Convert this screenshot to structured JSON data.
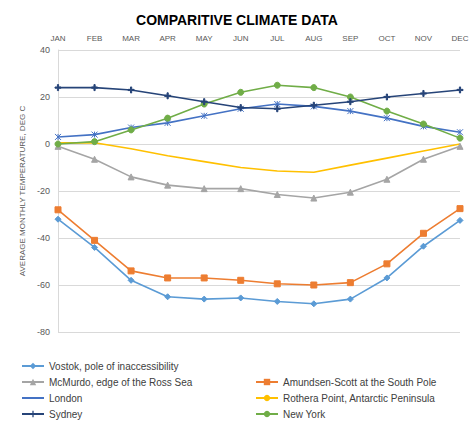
{
  "chart_data": {
    "type": "line",
    "title": "COMPARITIVE CLIMATE DATA",
    "y_label": "AVERAGE MONTHLY TEMPERATURE, DEG C",
    "categories": [
      "JAN",
      "FEB",
      "MAR",
      "APR",
      "MAY",
      "JUN",
      "JUL",
      "AUG",
      "SEP",
      "OCT",
      "NOV",
      "DEC"
    ],
    "series": [
      {
        "name": "Vostok, pole of inaccessibility",
        "color": "#5b9bd5",
        "marker": "diamond",
        "values": [
          -32,
          -44,
          -58,
          -65,
          -66,
          -65.5,
          -67,
          -68,
          -66,
          -57,
          -43.5,
          -32.5
        ]
      },
      {
        "name": "Amundsen-Scott at the South Pole",
        "color": "#ed7d31",
        "marker": "square",
        "values": [
          -28,
          -41,
          -54,
          -57,
          -57,
          -58,
          -59.5,
          -60,
          -59,
          -51,
          -38,
          -27.5
        ]
      },
      {
        "name": "McMurdo, edge of the Ross Sea",
        "color": "#a5a5a5",
        "marker": "triangle",
        "values": [
          -1,
          -6.5,
          -14,
          -17.5,
          -19,
          -19,
          -21.5,
          -23,
          -20.5,
          -15,
          -6.5,
          -1
        ]
      },
      {
        "name": "Rothera Point, Antarctic Peninsula",
        "color": "#ffc000",
        "marker": "none",
        "values": [
          0.5,
          0.5,
          -2,
          -5,
          -7.5,
          -10,
          -11.5,
          -12,
          -9,
          -6,
          -3,
          0
        ]
      },
      {
        "name": "London",
        "color": "#4472c4",
        "marker": "x",
        "values": [
          3,
          4,
          7,
          9,
          12,
          15,
          17,
          16,
          14,
          11,
          7.5,
          5
        ]
      },
      {
        "name": "New York",
        "color": "#70ad47",
        "marker": "circle",
        "values": [
          0,
          1,
          6,
          11,
          17,
          22,
          25,
          24,
          20,
          14,
          8.5,
          2.5
        ]
      },
      {
        "name": "Sydney",
        "color": "#264478",
        "marker": "plus",
        "values": [
          24,
          24,
          23,
          20.5,
          18,
          15.5,
          15,
          16.5,
          18,
          20,
          21.5,
          23
        ]
      }
    ],
    "ylim": [
      -80,
      40
    ],
    "yticks": [
      -80,
      -60,
      -40,
      -20,
      0,
      20,
      40
    ],
    "grid": true,
    "legend": "bottom"
  }
}
